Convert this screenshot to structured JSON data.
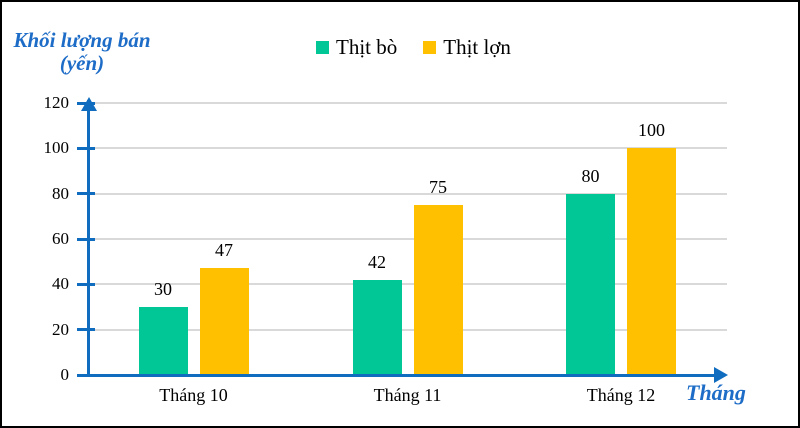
{
  "labels": {
    "y_title_line1": "Khối lượng bán",
    "y_title_line2": "(yến)",
    "x_title": "Tháng"
  },
  "colors": {
    "series_beef": "#00c795",
    "series_pork": "#ffc000",
    "axis": "#0f6cbe",
    "title_text": "#1d6cc7",
    "gridline": "#d9d9d9",
    "value_text": "#000000",
    "background": "#ffffff",
    "border": "#000000"
  },
  "chart_data": {
    "type": "bar",
    "title": "",
    "categories": [
      "Tháng 10",
      "Tháng 11",
      "Tháng 12"
    ],
    "series": [
      {
        "name": "Thịt bò",
        "color": "#00c795",
        "values": [
          30,
          42,
          80
        ]
      },
      {
        "name": "Thịt lợn",
        "color": "#ffc000",
        "values": [
          47,
          75,
          100
        ]
      }
    ],
    "xlabel": "Tháng",
    "ylabel": "Khối lượng bán (yến)",
    "ylim": [
      0,
      120
    ],
    "ytick_step": 20,
    "grid": true,
    "data_labels": true,
    "legend_position": "top-center"
  }
}
